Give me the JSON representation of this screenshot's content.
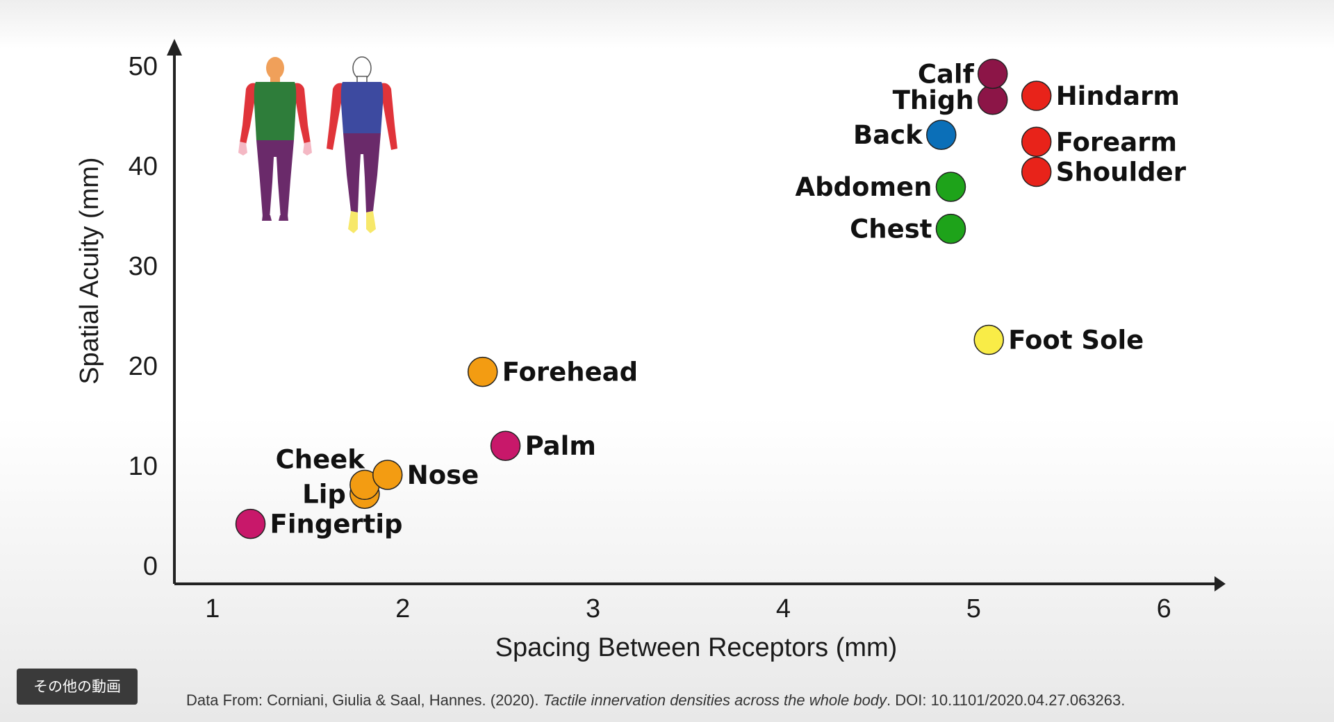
{
  "chart_data": {
    "type": "scatter",
    "xlabel": "Spacing Between Receptors (mm)",
    "ylabel": "Spatial Acuity (mm)",
    "xlim": [
      0.8,
      6.2
    ],
    "ylim": [
      -1.8,
      52
    ],
    "x_ticks": [
      1,
      2,
      3,
      4,
      5,
      6
    ],
    "y_ticks": [
      0,
      10,
      20,
      30,
      40,
      50
    ],
    "grid": false,
    "points": [
      {
        "label": "Calf",
        "x": 5.1,
        "y": 49.2,
        "color": "#8c1547",
        "label_side": "left"
      },
      {
        "label": "Thigh",
        "x": 5.1,
        "y": 46.6,
        "color": "#8c1547",
        "label_side": "left"
      },
      {
        "label": "Hindarm",
        "x": 5.33,
        "y": 47.0,
        "color": "#e8231a",
        "label_side": "right"
      },
      {
        "label": "Back",
        "x": 4.83,
        "y": 43.1,
        "color": "#0b6fb8",
        "label_side": "left"
      },
      {
        "label": "Forearm",
        "x": 5.33,
        "y": 42.4,
        "color": "#e8231a",
        "label_side": "right"
      },
      {
        "label": "Shoulder",
        "x": 5.33,
        "y": 39.4,
        "color": "#e8231a",
        "label_side": "right"
      },
      {
        "label": "Abdomen",
        "x": 4.88,
        "y": 37.9,
        "color": "#1ea31a",
        "label_side": "left"
      },
      {
        "label": "Chest",
        "x": 4.88,
        "y": 33.7,
        "color": "#1ea31a",
        "label_side": "left"
      },
      {
        "label": "Foot Sole",
        "x": 5.08,
        "y": 22.6,
        "color": "#f9ec47",
        "label_side": "right"
      },
      {
        "label": "Forehead",
        "x": 2.42,
        "y": 19.4,
        "color": "#f39c12",
        "label_side": "right"
      },
      {
        "label": "Palm",
        "x": 2.54,
        "y": 12.0,
        "color": "#c8186a",
        "label_side": "right"
      },
      {
        "label": "Nose",
        "x": 1.92,
        "y": 9.1,
        "color": "#f39c12",
        "label_side": "right"
      },
      {
        "label": "Lip",
        "x": 1.8,
        "y": 7.2,
        "color": "#f39c12",
        "label_side": "left"
      },
      {
        "label": "Cheek",
        "x": 1.8,
        "y": 8.1,
        "color": "#f39c12",
        "label_side": "left-above"
      },
      {
        "label": "Fingertip",
        "x": 1.2,
        "y": 4.2,
        "color": "#c8186a",
        "label_side": "right"
      }
    ]
  },
  "body_map": {
    "colors": {
      "head_front": "#f0a05a",
      "head_back": "#ffffff",
      "torso_front": "#2e7d3a",
      "torso_back": "#3d4aa0",
      "arms": "#e0343a",
      "hands": "#f4b8c4",
      "legs": "#6a2a6a",
      "feet_back": "#f7e86a"
    }
  },
  "more_videos_label": "その他の動画",
  "source": {
    "prefix": "Data From: Corniani, Giulia & Saal, Hannes. (2020). ",
    "title": "Tactile innervation densities across the whole body",
    "suffix": ". DOI: 10.1101/2020.04.27.063263."
  }
}
